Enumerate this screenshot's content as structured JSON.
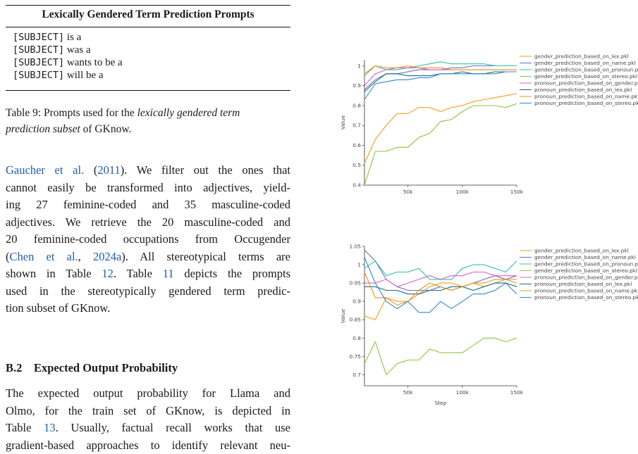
{
  "table9": {
    "header": "Lexically Gendered Term Prediction Prompts",
    "rows": [
      {
        "token": "[SUBJECT]",
        "rest": " is a"
      },
      {
        "token": "[SUBJECT]",
        "rest": " was a"
      },
      {
        "token": "[SUBJECT]",
        "rest": " wants to be a"
      },
      {
        "token": "[SUBJECT]",
        "rest": " will be a"
      }
    ],
    "caption_prefix": "Table 9: Prompts used for the ",
    "caption_italic_1": "lexically gendered term",
    "caption_italic_2": "prediction subset",
    "caption_suffix": " of GKnow."
  },
  "paragraph1": {
    "cite1": "Gaucher et al.",
    "cite1_open": " (",
    "cite1_year": "2011",
    "line1_rest": "). We filter out the ones that",
    "line2": "cannot easily be transformed into adjectives, yield-",
    "line3": "ing 27 feminine-coded and 35 masculine-coded",
    "line4": "adjectives. We retrieve the 20 masculine-coded and",
    "line5": "20 feminine-coded occupations from Occugender",
    "line6_open": "(",
    "cite2": "Chen et al.",
    "cite2_sep": ", ",
    "cite2_year": "2024a",
    "line6_rest": "). All stereotypical terms are",
    "line7_a": "shown in Table ",
    "ref_t12": "12",
    "line7_b": ". Table ",
    "ref_t11": "11",
    "line7_c": " depicts the prompts",
    "line8": "used in the stereotypically gendered term predic-",
    "line9": "tion subset of GKnow."
  },
  "section": {
    "number": "B.2",
    "title": "Expected Output Probability"
  },
  "paragraph2": {
    "line1": "The expected output probability for Llama and",
    "line2": "Olmo, for the train set of GKnow, is depicted in",
    "line3_a": "Table ",
    "ref_t13": "13",
    "line3_b": ". Usually, factual recall works that use",
    "line4": "gradient-based approaches to identify relevant neu-"
  },
  "chart_data": [
    {
      "type": "line",
      "title": "",
      "xlabel": "",
      "ylabel": "Value",
      "xlim": [
        10000,
        150000
      ],
      "ylim": [
        0.4,
        1.03
      ],
      "xticks": [
        50000,
        100000,
        150000
      ],
      "xtick_labels": [
        "50k",
        "100k",
        "150k"
      ],
      "yticks": [
        0.4,
        0.5,
        0.6,
        0.7,
        0.8,
        0.9,
        1
      ],
      "ytick_labels": [
        "0.4",
        "0.5",
        "0.6",
        "0.7",
        "0.8",
        "0.9",
        "1"
      ],
      "legend_position": "right",
      "x": [
        10000,
        20000,
        30000,
        40000,
        50000,
        60000,
        70000,
        80000,
        90000,
        100000,
        110000,
        120000,
        130000,
        140000,
        150000
      ],
      "series": [
        {
          "name": "gender_prediction_based_on_lex.pkl",
          "color": "#f39c1e",
          "values": [
            0.51,
            0.63,
            0.7,
            0.76,
            0.76,
            0.79,
            0.79,
            0.77,
            0.79,
            0.8,
            0.82,
            0.83,
            0.84,
            0.85,
            0.86
          ]
        },
        {
          "name": "gender_prediction_based_on_name.pkl",
          "color": "#6a6fbf",
          "values": [
            0.88,
            0.93,
            0.96,
            0.96,
            0.97,
            0.98,
            0.98,
            0.98,
            0.99,
            0.99,
            1.0,
            1.0,
            1.0,
            1.0,
            1.0
          ]
        },
        {
          "name": "gender_prediction_based_on_pronoun.pkl",
          "color": "#34c0a4",
          "values": [
            0.95,
            1.0,
            0.98,
            0.98,
            0.99,
            1.0,
            1.01,
            1.02,
            1.01,
            1.01,
            1.01,
            1.01,
            1.0,
            1.0,
            1.0
          ]
        },
        {
          "name": "gender_prediction_based_on_stereo.pkl",
          "color": "#8cc63e",
          "values": [
            0.4,
            0.57,
            0.57,
            0.59,
            0.59,
            0.64,
            0.66,
            0.72,
            0.73,
            0.77,
            0.8,
            0.8,
            0.8,
            0.79,
            0.81
          ]
        },
        {
          "name": "pronoun_prediction_based_on_gender.pkl",
          "color": "#d95fc6",
          "values": [
            0.9,
            0.96,
            0.98,
            0.99,
            0.99,
            0.99,
            0.98,
            0.98,
            0.98,
            0.98,
            0.98,
            0.98,
            0.98,
            0.98,
            0.98
          ]
        },
        {
          "name": "pronoun_prediction_based_on_lex.pkl",
          "color": "#1b6d72",
          "values": [
            0.87,
            0.92,
            0.96,
            0.96,
            0.95,
            0.95,
            0.95,
            0.96,
            0.96,
            0.97,
            0.96,
            0.96,
            0.97,
            0.97,
            0.97
          ]
        },
        {
          "name": "pronoun_prediction_based_on_name.pkl",
          "color": "#e8951a",
          "values": [
            0.96,
            1.0,
            0.99,
            0.99,
            1.0,
            0.99,
            0.99,
            0.99,
            0.98,
            0.98,
            0.98,
            0.98,
            0.98,
            0.98,
            0.98
          ]
        },
        {
          "name": "pronoun_prediction_based_on_stereo.pkl",
          "color": "#2d8ad6",
          "values": [
            0.83,
            0.91,
            0.92,
            0.93,
            0.93,
            0.94,
            0.94,
            0.96,
            0.96,
            0.96,
            0.96,
            0.96,
            0.96,
            0.97,
            0.97
          ]
        }
      ]
    },
    {
      "type": "line",
      "title": "",
      "xlabel": "Step",
      "ylabel": "Value",
      "xlim": [
        10000,
        150000
      ],
      "ylim": [
        0.67,
        1.05
      ],
      "xticks": [
        50000,
        100000,
        150000
      ],
      "xtick_labels": [
        "50k",
        "100k",
        "150k"
      ],
      "yticks": [
        0.7,
        0.75,
        0.8,
        0.85,
        0.9,
        0.95,
        1,
        1.05
      ],
      "ytick_labels": [
        "0.7",
        "0.75",
        "0.8",
        "0.85",
        "0.9",
        "0.95",
        "1",
        "1.05"
      ],
      "legend_position": "right",
      "x": [
        10000,
        20000,
        30000,
        40000,
        50000,
        60000,
        70000,
        80000,
        90000,
        100000,
        110000,
        120000,
        130000,
        140000,
        150000
      ],
      "series": [
        {
          "name": "gender_prediction_based_on_lex.pkl",
          "color": "#f39c1e",
          "values": [
            0.86,
            0.85,
            0.91,
            0.9,
            0.9,
            0.92,
            0.94,
            0.95,
            0.95,
            0.94,
            0.95,
            0.94,
            0.95,
            0.96,
            0.96
          ]
        },
        {
          "name": "gender_prediction_based_on_name.pkl",
          "color": "#6a6fbf",
          "values": [
            1.04,
            1.01,
            0.96,
            0.94,
            0.93,
            0.93,
            0.93,
            0.94,
            0.93,
            0.94,
            0.95,
            0.96,
            0.97,
            0.96,
            0.97
          ]
        },
        {
          "name": "gender_prediction_based_on_pronoun.pkl",
          "color": "#34c0a4",
          "values": [
            0.99,
            1.01,
            0.97,
            0.98,
            0.98,
            0.99,
            0.96,
            0.96,
            0.96,
            0.99,
            1.0,
            1.0,
            0.99,
            0.98,
            1.01
          ]
        },
        {
          "name": "gender_prediction_based_on_stereo.pkl",
          "color": "#8cc63e",
          "values": [
            0.73,
            0.79,
            0.7,
            0.73,
            0.74,
            0.74,
            0.77,
            0.76,
            0.76,
            0.76,
            0.78,
            0.8,
            0.8,
            0.79,
            0.8
          ]
        },
        {
          "name": "pronoun_prediction_based_on_gender.pkl",
          "color": "#d95fc6",
          "values": [
            0.95,
            0.95,
            0.96,
            0.94,
            0.95,
            0.96,
            0.97,
            0.96,
            0.97,
            0.97,
            0.98,
            0.98,
            0.97,
            0.97,
            0.97
          ]
        },
        {
          "name": "pronoun_prediction_based_on_lex.pkl",
          "color": "#1b6d72",
          "values": [
            0.94,
            0.94,
            0.93,
            0.93,
            0.92,
            0.92,
            0.93,
            0.93,
            0.94,
            0.94,
            0.93,
            0.94,
            0.95,
            0.95,
            0.94
          ]
        },
        {
          "name": "pronoun_prediction_based_on_name.pkl",
          "color": "#e8951a",
          "values": [
            0.98,
            0.91,
            0.91,
            0.89,
            0.9,
            0.93,
            0.95,
            0.94,
            0.93,
            0.94,
            0.95,
            0.95,
            0.96,
            0.96,
            0.95
          ]
        },
        {
          "name": "pronoun_prediction_based_on_stereo.pkl",
          "color": "#2d8ad6",
          "values": [
            1.02,
            0.95,
            0.9,
            0.88,
            0.9,
            0.87,
            0.87,
            0.9,
            0.88,
            0.9,
            0.92,
            0.92,
            0.93,
            0.95,
            0.92
          ]
        }
      ]
    }
  ]
}
